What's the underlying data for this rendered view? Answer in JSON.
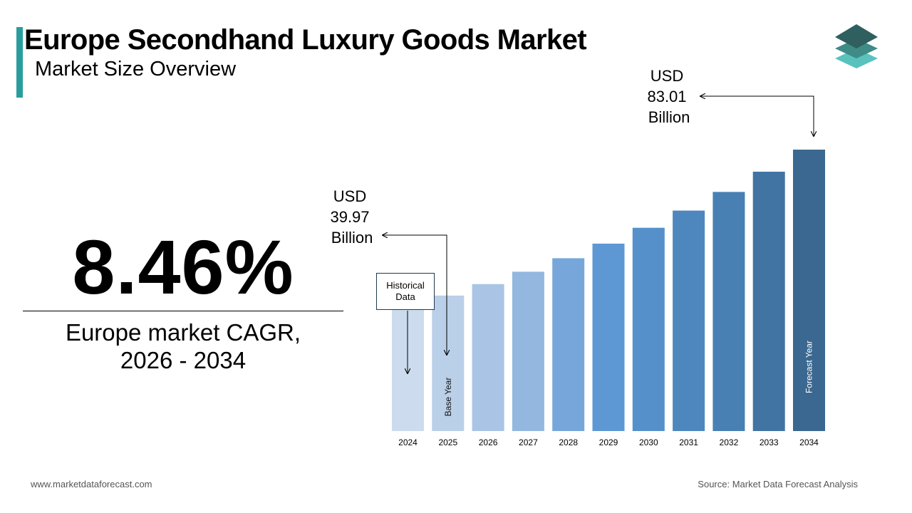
{
  "header": {
    "title": "Europe Secondhand Luxury Goods Market",
    "subtitle": "Market Size Overview"
  },
  "kpi": {
    "cagr": "8.46%",
    "label_line1": "Europe market CAGR,",
    "label_line2": "2026 - 2034"
  },
  "callouts": {
    "start": "USD\n39.97\n Billion",
    "end": "USD\n83.01\n Billion",
    "historical": "Historical\nData"
  },
  "footer": {
    "website": "www.marketdataforecast.com",
    "source": "Source: Market Data Forecast Analysis"
  },
  "colors": {
    "accent": "#2a9d9e",
    "logo_top": "#2f5f5f",
    "logo_mid": "#3f8b86",
    "logo_bottom": "#59c2bd"
  },
  "chart_data": {
    "type": "bar",
    "categories": [
      "2024",
      "2025",
      "2026",
      "2027",
      "2028",
      "2029",
      "2030",
      "2031",
      "2032",
      "2033",
      "2034"
    ],
    "values": [
      36.85,
      39.97,
      43.35,
      47.0,
      50.98,
      55.28,
      59.96,
      65.03,
      70.53,
      76.5,
      83.01
    ],
    "bar_colors": [
      "#ccdbee",
      "#bacfe8",
      "#a9c4e5",
      "#93b7df",
      "#77a7da",
      "#5d98d4",
      "#5590cb",
      "#4d87be",
      "#4880b3",
      "#4174a2",
      "#3b6890"
    ],
    "bar_labels": [
      {
        "category": "2025",
        "text": "Base Year"
      },
      {
        "category": "2034",
        "text": "Forecast Year"
      }
    ],
    "ylim": [
      0,
      90
    ],
    "grid": false,
    "legend": "none"
  }
}
